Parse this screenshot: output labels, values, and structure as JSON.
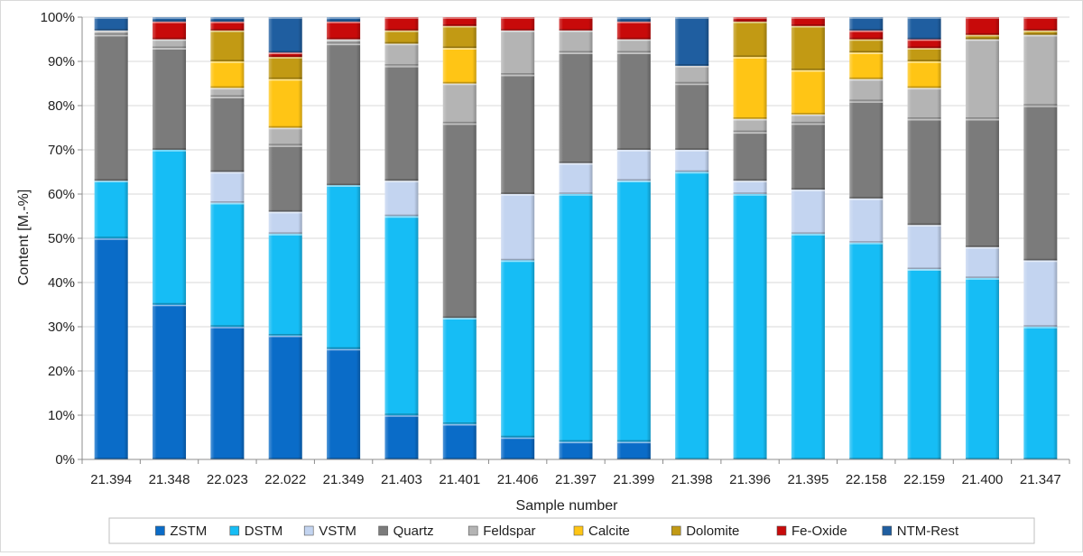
{
  "chart_data": {
    "type": "bar",
    "stacked": true,
    "title": "",
    "xlabel": "Sample number",
    "ylabel": "Content [M.-%]",
    "ylim": [
      0,
      100
    ],
    "y_ticks": [
      "0%",
      "10%",
      "20%",
      "30%",
      "40%",
      "50%",
      "60%",
      "70%",
      "80%",
      "90%",
      "100%"
    ],
    "grid": true,
    "legend_position": "bottom",
    "categories": [
      "21.394",
      "21.348",
      "22.023",
      "22.022",
      "21.349",
      "21.403",
      "21.401",
      "21.406",
      "21.397",
      "21.399",
      "21.398",
      "21.396",
      "21.395",
      "22.158",
      "22.159",
      "21.400",
      "21.347"
    ],
    "series": [
      {
        "name": "ZSTM",
        "color": "#0a6cc8",
        "values": [
          50,
          35,
          30,
          28,
          25,
          10,
          8,
          5,
          4,
          4,
          0,
          0,
          0,
          0,
          0,
          0,
          0
        ]
      },
      {
        "name": "DSTM",
        "color": "#16bdf5",
        "values": [
          13,
          35,
          28,
          23,
          37,
          45,
          24,
          40,
          56,
          59,
          65,
          60,
          51,
          49,
          43,
          41,
          30
        ]
      },
      {
        "name": "VSTM",
        "color": "#c3d4f0",
        "values": [
          0,
          0,
          7,
          5,
          0,
          8,
          0,
          15,
          7,
          7,
          5,
          3,
          10,
          10,
          10,
          7,
          15
        ]
      },
      {
        "name": "Quartz",
        "color": "#7b7b7b",
        "values": [
          33,
          23,
          17,
          15,
          32,
          26,
          44,
          27,
          25,
          22,
          15,
          11,
          15,
          22,
          24,
          29,
          35
        ]
      },
      {
        "name": "Feldspar",
        "color": "#b4b4b4",
        "values": [
          1,
          2,
          2,
          4,
          1,
          5,
          9,
          10,
          5,
          3,
          4,
          3,
          2,
          5,
          7,
          18,
          16
        ]
      },
      {
        "name": "Calcite",
        "color": "#ffc515",
        "values": [
          0,
          0,
          6,
          11,
          0,
          0,
          8,
          0,
          0,
          0,
          0,
          14,
          10,
          6,
          6,
          0,
          0
        ]
      },
      {
        "name": "Dolomite",
        "color": "#c29a14",
        "values": [
          0,
          0,
          7,
          5,
          0,
          3,
          5,
          0,
          0,
          0,
          0,
          8,
          10,
          3,
          3,
          1,
          1
        ]
      },
      {
        "name": "Fe-Oxide",
        "color": "#c80a0a",
        "values": [
          0,
          4,
          2,
          1,
          4,
          3,
          2,
          3,
          3,
          4,
          0,
          1,
          2,
          2,
          2,
          4,
          3
        ]
      },
      {
        "name": "NTM-Rest",
        "color": "#1f5ea0",
        "values": [
          3,
          1,
          1,
          8,
          1,
          0,
          0,
          0,
          0,
          1,
          11,
          0,
          0,
          3,
          5,
          0,
          0
        ]
      }
    ]
  }
}
